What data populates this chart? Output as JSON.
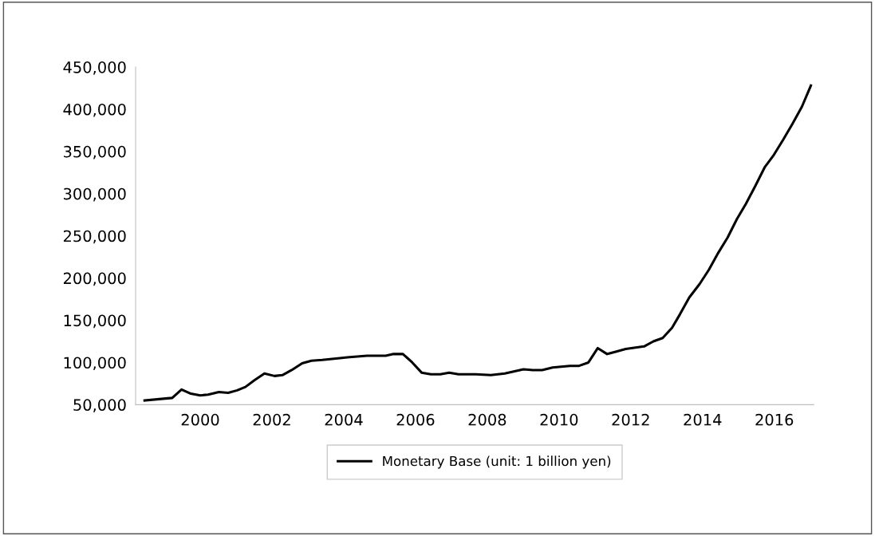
{
  "chart_data": {
    "type": "line",
    "x": [
      1998.45,
      1999.22,
      1999.48,
      1999.74,
      2000.0,
      2000.22,
      2000.52,
      2000.78,
      2001.03,
      2001.26,
      2001.51,
      2001.79,
      2002.07,
      2002.29,
      2002.55,
      2002.84,
      2003.1,
      2003.4,
      2003.84,
      2004.1,
      2004.65,
      2005.17,
      2005.39,
      2005.65,
      2005.91,
      2006.17,
      2006.43,
      2006.69,
      2006.94,
      2007.2,
      2007.68,
      2008.1,
      2008.49,
      2009.01,
      2009.27,
      2009.53,
      2009.82,
      2010.3,
      2010.56,
      2010.82,
      2011.08,
      2011.34,
      2011.6,
      2011.86,
      2012.37,
      2012.63,
      2012.89,
      2013.15,
      2013.37,
      2013.63,
      2013.92,
      2014.18,
      2014.44,
      2014.7,
      2014.96,
      2015.21,
      2015.47,
      2015.73,
      2015.99,
      2016.25,
      2016.51,
      2016.77,
      2017.02
    ],
    "series": [
      {
        "name": "Monetary Base (unit: 1 billion yen)",
        "color": "#000000",
        "values": [
          55000,
          58000,
          68000,
          63000,
          61000,
          62000,
          65000,
          64000,
          67000,
          71000,
          79000,
          87000,
          84000,
          85000,
          91000,
          99000,
          102000,
          103000,
          105000,
          106000,
          108000,
          108000,
          110000,
          110000,
          100000,
          88000,
          86000,
          86000,
          88000,
          86000,
          86000,
          85000,
          87000,
          92000,
          91000,
          91000,
          94000,
          96000,
          96000,
          100000,
          117000,
          110000,
          113000,
          116000,
          119000,
          125000,
          129000,
          141000,
          157000,
          177000,
          193000,
          210000,
          230000,
          248000,
          270000,
          288000,
          309000,
          331000,
          346000,
          364000,
          383000,
          403000,
          428000
        ]
      }
    ],
    "xlim": [
      1998.2,
      2017.1
    ],
    "xticks": [
      2000,
      2002,
      2004,
      2006,
      2008,
      2010,
      2012,
      2014,
      2016
    ],
    "ylim": [
      50000,
      450000
    ],
    "yticks": [
      {
        "value": 50000,
        "label": "50,000"
      },
      {
        "value": 100000,
        "label": "100,000"
      },
      {
        "value": 150000,
        "label": "150,000"
      },
      {
        "value": 200000,
        "label": "200,000"
      },
      {
        "value": 250000,
        "label": "250,000"
      },
      {
        "value": 300000,
        "label": "300,000"
      },
      {
        "value": 350000,
        "label": "350,000"
      },
      {
        "value": 400000,
        "label": "400,000"
      },
      {
        "value": 450000,
        "label": "450,000"
      }
    ],
    "grid": false,
    "legend": "bottom",
    "marker": "none",
    "line_style": "solid"
  }
}
